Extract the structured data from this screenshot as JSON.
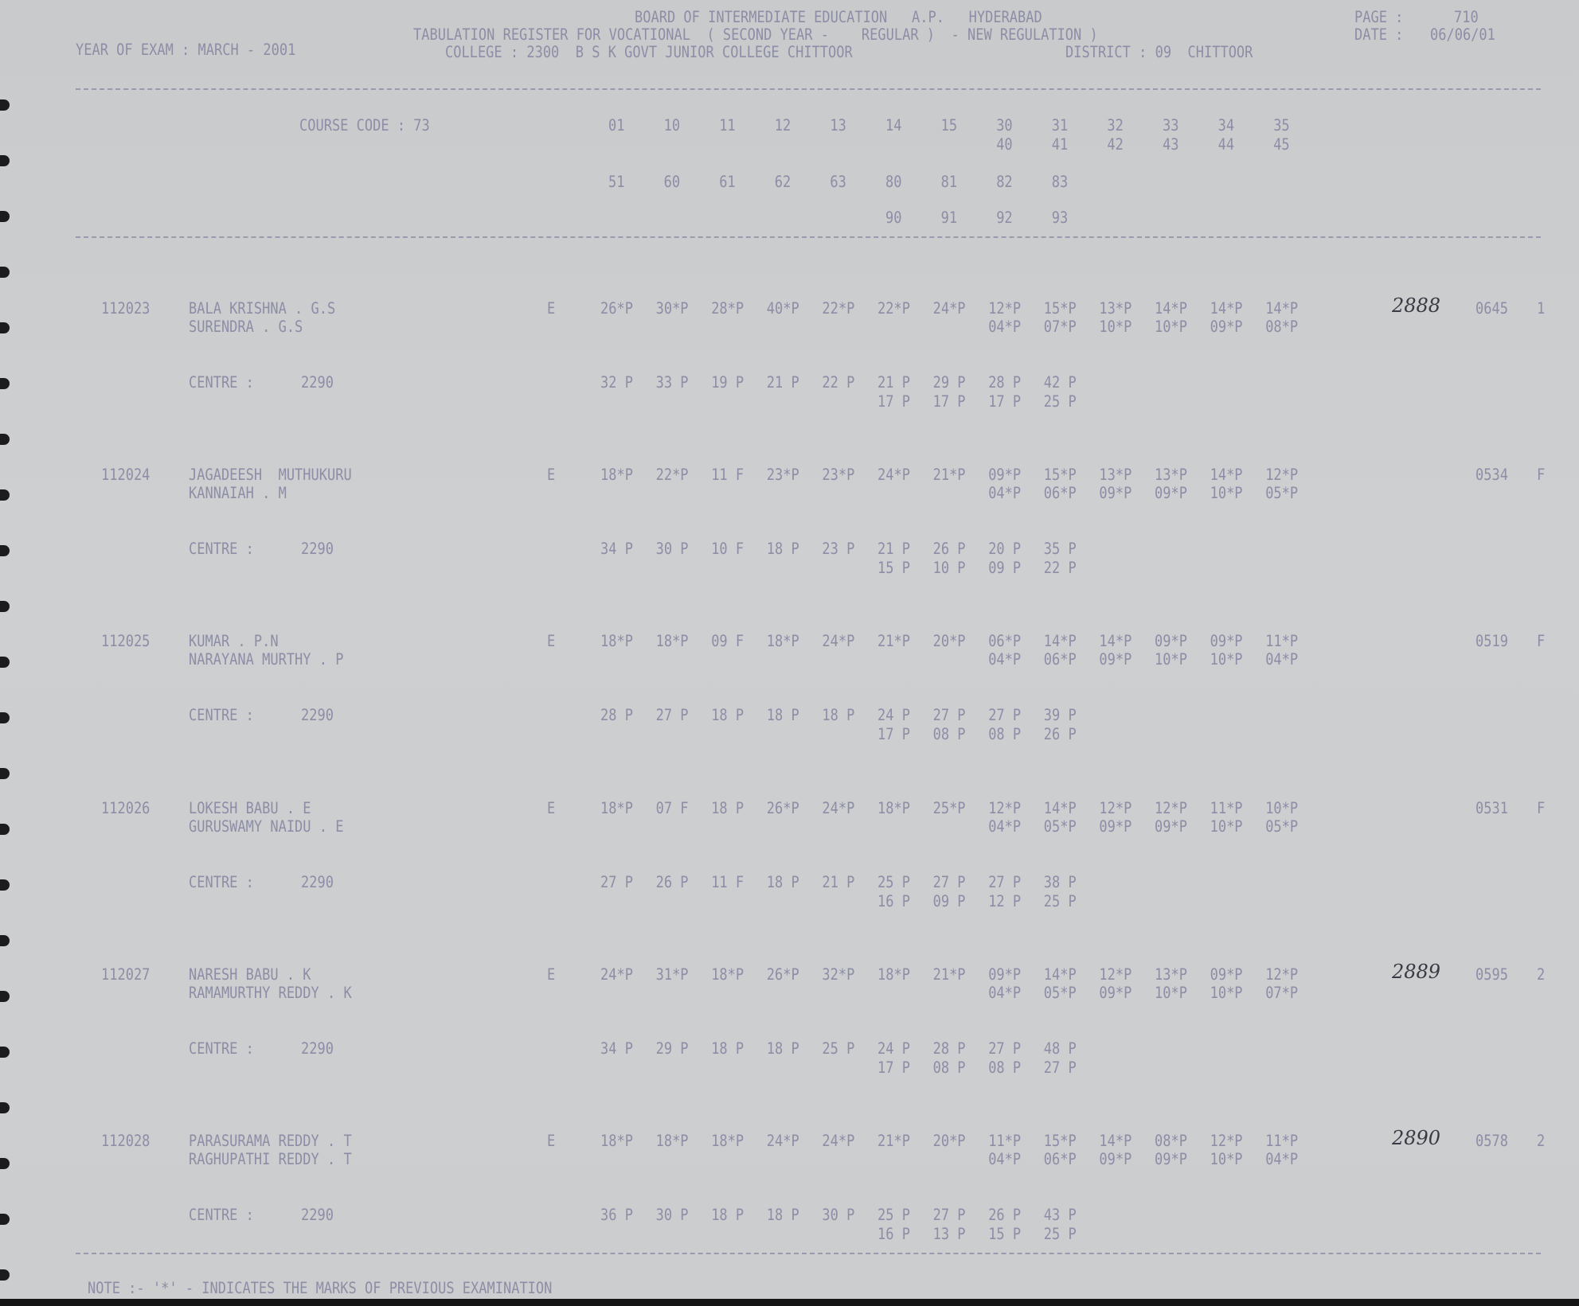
{
  "header": {
    "board": "BOARD OF INTERMEDIATE EDUCATION   A.P.   HYDERABAD",
    "page_label": "PAGE :",
    "page_number": "710",
    "register_title": "TABULATION REGISTER FOR VOCATIONAL  ( SECOND YEAR -    REGULAR )  - NEW REGULATION )",
    "date_label": "DATE :",
    "date": "06/06/01",
    "year_of_exam": "YEAR OF EXAM : MARCH - 2001",
    "college": "COLLEGE : 2300  B S K GOVT JUNIOR COLLEGE CHITTOOR",
    "district": "DISTRICT : 09  CHITTOOR"
  },
  "course": {
    "label": "COURSE CODE : 73",
    "codes_row1": [
      "01",
      "10",
      "11",
      "12",
      "13",
      "14",
      "15",
      "30",
      "31",
      "32",
      "33",
      "34",
      "35"
    ],
    "codes_row2": [
      "40",
      "41",
      "42",
      "43",
      "44",
      "45"
    ],
    "codes_row3": [
      "51",
      "60",
      "61",
      "62",
      "63",
      "80",
      "81",
      "82",
      "83"
    ],
    "codes_row4": [
      "90",
      "91",
      "92",
      "93"
    ]
  },
  "students": [
    {
      "roll": "112023",
      "name": "BALA KRISHNA . G.S",
      "father": "SURENDRA . G.S",
      "type": "E",
      "marks1": [
        "26*P",
        "30*P",
        "28*P",
        "40*P",
        "22*P",
        "22*P",
        "24*P",
        "12*P",
        "15*P",
        "13*P",
        "14*P",
        "14*P",
        "14*P"
      ],
      "marks2": [
        "04*P",
        "07*P",
        "10*P",
        "10*P",
        "09*P",
        "08*P"
      ],
      "centre_label": "CENTRE :",
      "centre": "2290",
      "cmarks1": [
        "32 P",
        "33 P",
        "19 P",
        "21 P",
        "22 P",
        "21 P",
        "29 P",
        "28 P",
        "42 P"
      ],
      "cmarks2": [
        "17 P",
        "17 P",
        "17 P",
        "25 P"
      ],
      "total": "0645",
      "result": "1",
      "handwritten": "2888"
    },
    {
      "roll": "112024",
      "name": "JAGADEESH  MUTHUKURU",
      "father": "KANNAIAH . M",
      "type": "E",
      "marks1": [
        "18*P",
        "22*P",
        "11 F",
        "23*P",
        "23*P",
        "24*P",
        "21*P",
        "09*P",
        "15*P",
        "13*P",
        "13*P",
        "14*P",
        "12*P"
      ],
      "marks2": [
        "04*P",
        "06*P",
        "09*P",
        "09*P",
        "10*P",
        "05*P"
      ],
      "centre_label": "CENTRE :",
      "centre": "2290",
      "cmarks1": [
        "34 P",
        "30 P",
        "10 F",
        "18 P",
        "23 P",
        "21 P",
        "26 P",
        "20 P",
        "35 P"
      ],
      "cmarks2": [
        "15 P",
        "10 P",
        "09 P",
        "22 P"
      ],
      "total": "0534",
      "result": "F",
      "handwritten": ""
    },
    {
      "roll": "112025",
      "name": "KUMAR . P.N",
      "father": "NARAYANA MURTHY . P",
      "type": "E",
      "marks1": [
        "18*P",
        "18*P",
        "09 F",
        "18*P",
        "24*P",
        "21*P",
        "20*P",
        "06*P",
        "14*P",
        "14*P",
        "09*P",
        "09*P",
        "11*P"
      ],
      "marks2": [
        "04*P",
        "06*P",
        "09*P",
        "10*P",
        "10*P",
        "04*P"
      ],
      "centre_label": "CENTRE :",
      "centre": "2290",
      "cmarks1": [
        "28 P",
        "27 P",
        "18 P",
        "18 P",
        "18 P",
        "24 P",
        "27 P",
        "27 P",
        "39 P"
      ],
      "cmarks2": [
        "17 P",
        "08 P",
        "08 P",
        "26 P"
      ],
      "total": "0519",
      "result": "F",
      "handwritten": ""
    },
    {
      "roll": "112026",
      "name": "LOKESH BABU . E",
      "father": "GURUSWAMY NAIDU . E",
      "type": "E",
      "marks1": [
        "18*P",
        "07 F",
        "18 P",
        "26*P",
        "24*P",
        "18*P",
        "25*P",
        "12*P",
        "14*P",
        "12*P",
        "12*P",
        "11*P",
        "10*P"
      ],
      "marks2": [
        "04*P",
        "05*P",
        "09*P",
        "09*P",
        "10*P",
        "05*P"
      ],
      "centre_label": "CENTRE :",
      "centre": "2290",
      "cmarks1": [
        "27 P",
        "26 P",
        "11 F",
        "18 P",
        "21 P",
        "25 P",
        "27 P",
        "27 P",
        "38 P"
      ],
      "cmarks2": [
        "16 P",
        "09 P",
        "12 P",
        "25 P"
      ],
      "total": "0531",
      "result": "F",
      "handwritten": ""
    },
    {
      "roll": "112027",
      "name": "NARESH BABU . K",
      "father": "RAMAMURTHY REDDY . K",
      "type": "E",
      "marks1": [
        "24*P",
        "31*P",
        "18*P",
        "26*P",
        "32*P",
        "18*P",
        "21*P",
        "09*P",
        "14*P",
        "12*P",
        "13*P",
        "09*P",
        "12*P"
      ],
      "marks2": [
        "04*P",
        "05*P",
        "09*P",
        "10*P",
        "10*P",
        "07*P"
      ],
      "centre_label": "CENTRE :",
      "centre": "2290",
      "cmarks1": [
        "34 P",
        "29 P",
        "18 P",
        "18 P",
        "25 P",
        "24 P",
        "28 P",
        "27 P",
        "48 P"
      ],
      "cmarks2": [
        "17 P",
        "08 P",
        "08 P",
        "27 P"
      ],
      "total": "0595",
      "result": "2",
      "handwritten": "2889"
    },
    {
      "roll": "112028",
      "name": "PARASURAMA REDDY . T",
      "father": "RAGHUPATHI REDDY . T",
      "type": "E",
      "marks1": [
        "18*P",
        "18*P",
        "18*P",
        "24*P",
        "24*P",
        "21*P",
        "20*P",
        "11*P",
        "15*P",
        "14*P",
        "08*P",
        "12*P",
        "11*P"
      ],
      "marks2": [
        "04*P",
        "06*P",
        "09*P",
        "09*P",
        "10*P",
        "04*P"
      ],
      "centre_label": "CENTRE :",
      "centre": "2290",
      "cmarks1": [
        "36 P",
        "30 P",
        "18 P",
        "18 P",
        "30 P",
        "25 P",
        "27 P",
        "26 P",
        "43 P"
      ],
      "cmarks2": [
        "16 P",
        "13 P",
        "15 P",
        "25 P"
      ],
      "total": "0578",
      "result": "2",
      "handwritten": "2890"
    }
  ],
  "note": "NOTE :- '*' - INDICATES THE MARKS OF PREVIOUS EXAMINATION"
}
